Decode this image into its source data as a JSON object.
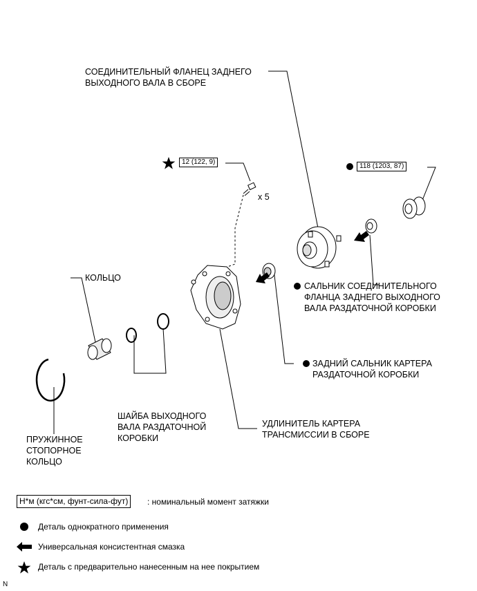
{
  "labels": {
    "flange": "СОЕДИНИТЕЛЬНЫЙ ФЛАНЕЦ ЗАДНЕГО\nВЫХОДНОГО ВАЛА В СБОРЕ",
    "ring": "КОЛЬЦО",
    "flange_seal": "САЛЬНИК СОЕДИНИТЕЛЬНОГО\nФЛАНЦА ЗАДНЕГО ВЫХОДНОГО\nВАЛА РАЗДАТОЧНОЙ КОРОБКИ",
    "rear_seal": "ЗАДНИЙ САЛЬНИК КАРТЕРА\nРАЗДАТОЧНОЙ КОРОБКИ",
    "washer": "ШАЙБА ВЫХОДНОГО\nВАЛА РАЗДАТОЧНОЙ\nКОРОБКИ",
    "extension": "УДЛИНИТЕЛЬ КАРТЕРА\nТРАНСМИССИИ В СБОРЕ",
    "snap_ring": "ПРУЖИННОЕ\nСТОПОРНОЕ\nКОЛЬЦО"
  },
  "torques": {
    "bolts": "12 (122, 9)",
    "nut": "118 (1203, 87)"
  },
  "qty": "x 5",
  "legend": {
    "unit_box": "Н*м (кгс*см, фунт-сила-фут)",
    "unit_text": ": номинальный момент затяжки",
    "single_use": "Деталь однократного применения",
    "grease": "Универсальная консистентная смазка",
    "precoated": "Деталь с предварительно нанесенным на нее покрытием"
  },
  "corner": "N"
}
